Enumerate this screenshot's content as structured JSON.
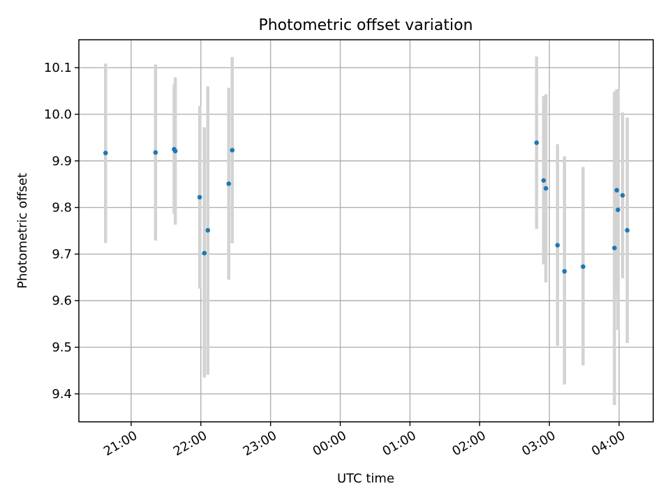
{
  "chart_data": {
    "type": "scatter",
    "title": "Photometric offset variation",
    "xlabel": "UTC time",
    "ylabel": "Photometric offset",
    "grid": true,
    "legend": "none",
    "colors": {
      "marker": "#1f77b4",
      "errorbar": "#d3d3d3",
      "grid": "#b0b0b0"
    },
    "x_ticks": [
      {
        "label": "21:00",
        "x": 21.0
      },
      {
        "label": "22:00",
        "x": 22.0
      },
      {
        "label": "23:00",
        "x": 23.0
      },
      {
        "label": "00:00",
        "x": 24.0
      },
      {
        "label": "01:00",
        "x": 25.0
      },
      {
        "label": "02:00",
        "x": 26.0
      },
      {
        "label": "03:00",
        "x": 27.0
      },
      {
        "label": "04:00",
        "x": 28.0
      }
    ],
    "y_ticks": [
      {
        "label": "9.4",
        "y": 9.4
      },
      {
        "label": "9.5",
        "y": 9.5
      },
      {
        "label": "9.6",
        "y": 9.6
      },
      {
        "label": "9.7",
        "y": 9.7
      },
      {
        "label": "9.8",
        "y": 9.8
      },
      {
        "label": "9.9",
        "y": 9.9
      },
      {
        "label": "10.0",
        "y": 10.0
      },
      {
        "label": "10.1",
        "y": 10.1
      }
    ],
    "xlim": [
      20.25,
      28.49
    ],
    "ylim": [
      9.34,
      10.16
    ],
    "points": [
      {
        "time": "20:38",
        "y": 9.917,
        "ylow": 9.724,
        "yhigh": 10.109
      },
      {
        "time": "21:21",
        "y": 9.918,
        "ylow": 9.729,
        "yhigh": 10.107
      },
      {
        "time": "21:37",
        "y": 9.925,
        "ylow": 9.786,
        "yhigh": 10.064
      },
      {
        "time": "21:38",
        "y": 9.921,
        "ylow": 9.763,
        "yhigh": 10.079
      },
      {
        "time": "21:59",
        "y": 9.822,
        "ylow": 9.626,
        "yhigh": 10.018
      },
      {
        "time": "22:03",
        "y": 9.702,
        "ylow": 9.435,
        "yhigh": 9.972
      },
      {
        "time": "22:06",
        "y": 9.751,
        "ylow": 9.441,
        "yhigh": 10.06
      },
      {
        "time": "22:24",
        "y": 9.851,
        "ylow": 9.645,
        "yhigh": 10.057
      },
      {
        "time": "22:27",
        "y": 9.923,
        "ylow": 9.723,
        "yhigh": 10.123
      },
      {
        "time": "02:49",
        "y": 9.939,
        "ylow": 9.754,
        "yhigh": 10.124
      },
      {
        "time": "02:55",
        "y": 9.858,
        "ylow": 9.678,
        "yhigh": 10.039
      },
      {
        "time": "02:57",
        "y": 9.841,
        "ylow": 9.639,
        "yhigh": 10.043
      },
      {
        "time": "03:07",
        "y": 9.719,
        "ylow": 9.503,
        "yhigh": 9.936
      },
      {
        "time": "03:13",
        "y": 9.663,
        "ylow": 9.42,
        "yhigh": 9.91
      },
      {
        "time": "03:29",
        "y": 9.673,
        "ylow": 9.461,
        "yhigh": 9.887
      },
      {
        "time": "03:56",
        "y": 9.713,
        "ylow": 9.376,
        "yhigh": 10.049
      },
      {
        "time": "03:58",
        "y": 9.837,
        "ylow": 9.614,
        "yhigh": 10.054
      },
      {
        "time": "03:59",
        "y": 9.795,
        "ylow": 9.537,
        "yhigh": 10.052
      },
      {
        "time": "04:03",
        "y": 9.826,
        "ylow": 9.648,
        "yhigh": 10.004
      },
      {
        "time": "04:07",
        "y": 9.751,
        "ylow": 9.509,
        "yhigh": 9.993
      }
    ]
  }
}
